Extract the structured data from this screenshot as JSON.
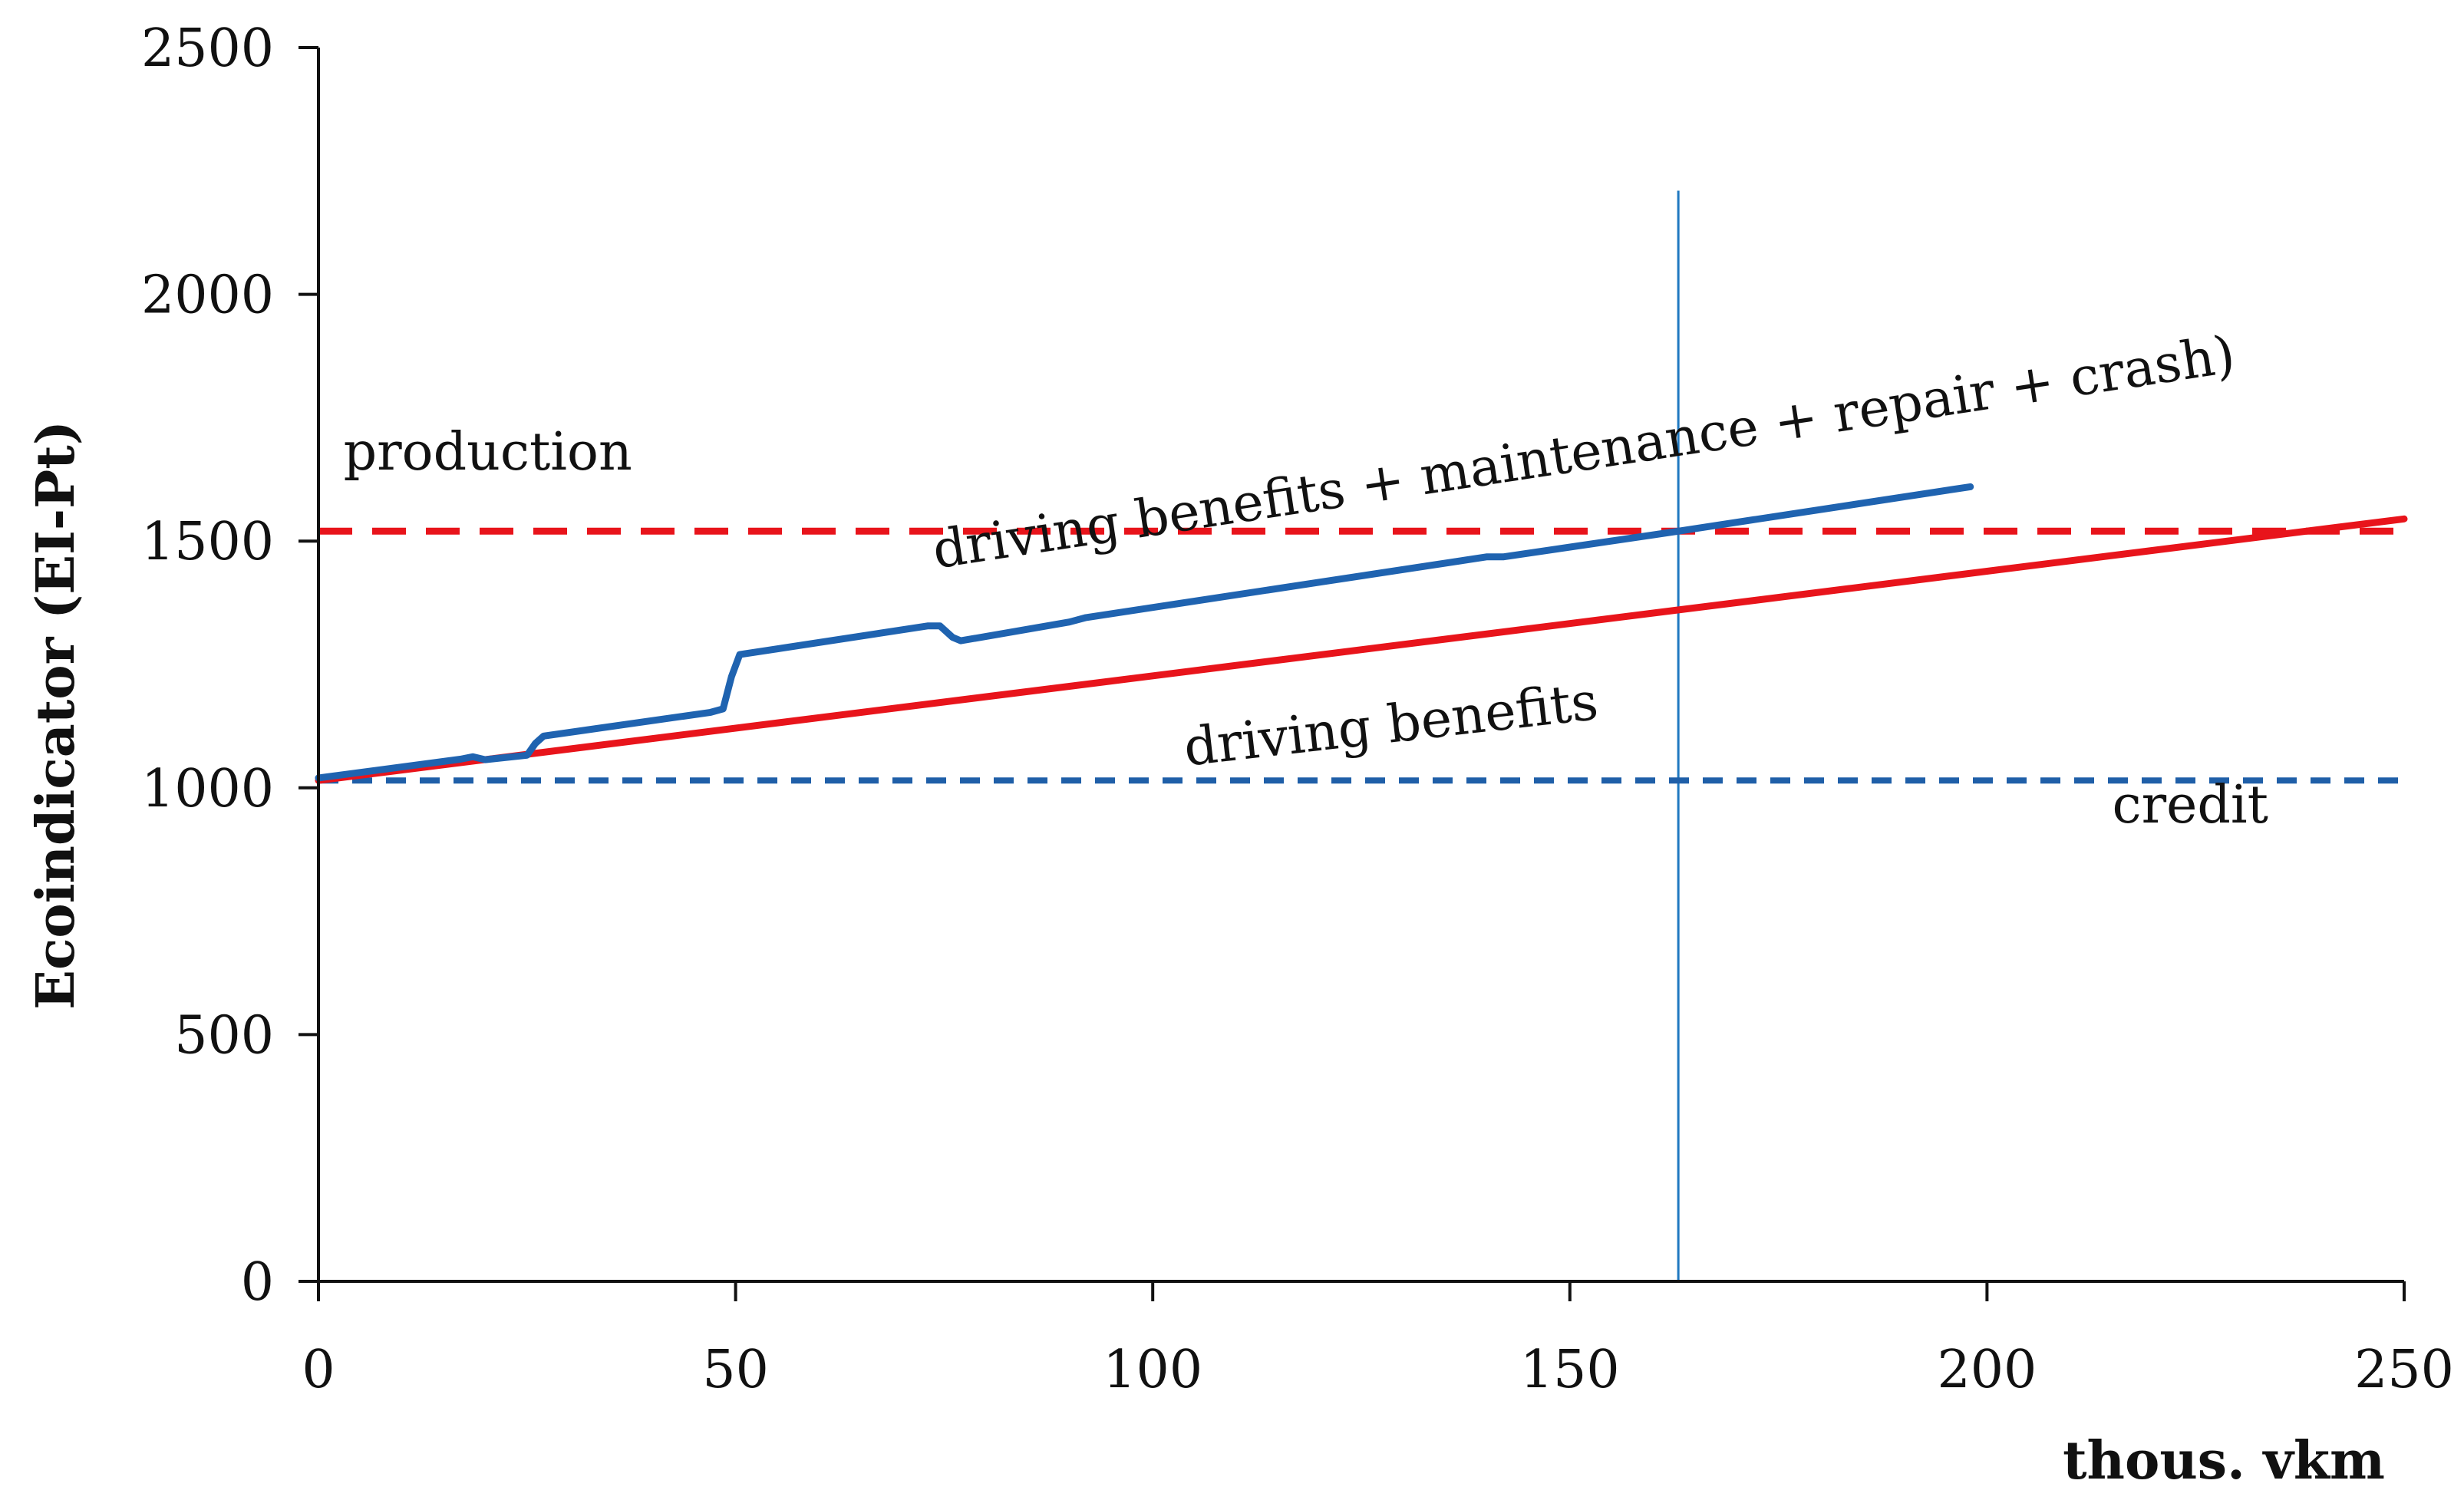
{
  "chart_data": {
    "type": "line",
    "title": "",
    "xlabel": "thous. vkm",
    "ylabel": "Ecoindicator (EI-Pt)",
    "xlim": [
      0,
      250
    ],
    "ylim": [
      0,
      2500
    ],
    "x_ticks": [
      "0",
      "50",
      "100",
      "150",
      "200",
      "250"
    ],
    "y_ticks": [
      "0",
      "500",
      "1000",
      "1500",
      "2000",
      "2500"
    ],
    "grid": false,
    "legend": "none",
    "series": [
      {
        "name": "production",
        "style": "dashed",
        "color": "#e8141b",
        "x": [
          0,
          250
        ],
        "y": [
          1520,
          1520
        ]
      },
      {
        "name": "credit",
        "style": "dashed",
        "color": "#1f5fa8",
        "x": [
          0,
          250
        ],
        "y": [
          1015,
          1015
        ]
      },
      {
        "name": "driving benefits",
        "style": "solid",
        "color": "#e8141b",
        "x": [
          0,
          250
        ],
        "y": [
          1015,
          1545
        ]
      },
      {
        "name": "driving benefits + maintenance + repair + crash)",
        "style": "solid",
        "color": "#1f63b0",
        "x": [
          0,
          17,
          18.5,
          20,
          25,
          26,
          27,
          47,
          48.5,
          49.5,
          50.5,
          73,
          74.5,
          76,
          77,
          90,
          92,
          140,
          142,
          163,
          198
        ],
        "y": [
          1020,
          1058,
          1063,
          1057,
          1066,
          1090,
          1105,
          1153,
          1160,
          1225,
          1270,
          1328,
          1328,
          1305,
          1298,
          1336,
          1345,
          1468,
          1468,
          1520,
          1610
        ]
      }
    ],
    "annotations": [
      {
        "text": "production",
        "x": 3,
        "y": 1645,
        "angle": 0
      },
      {
        "text": "driving benefits + maintenance + repair + crash)",
        "x": 74,
        "y": 1445,
        "angle": -8.6
      },
      {
        "text": "driving benefits",
        "x": 104,
        "y": 1045,
        "angle": -6.5
      },
      {
        "text": "credit",
        "x": 215,
        "y": 930,
        "angle": 0
      }
    ],
    "vline": {
      "x": 163,
      "y_top": 2210,
      "color": "#1f78c0"
    }
  }
}
